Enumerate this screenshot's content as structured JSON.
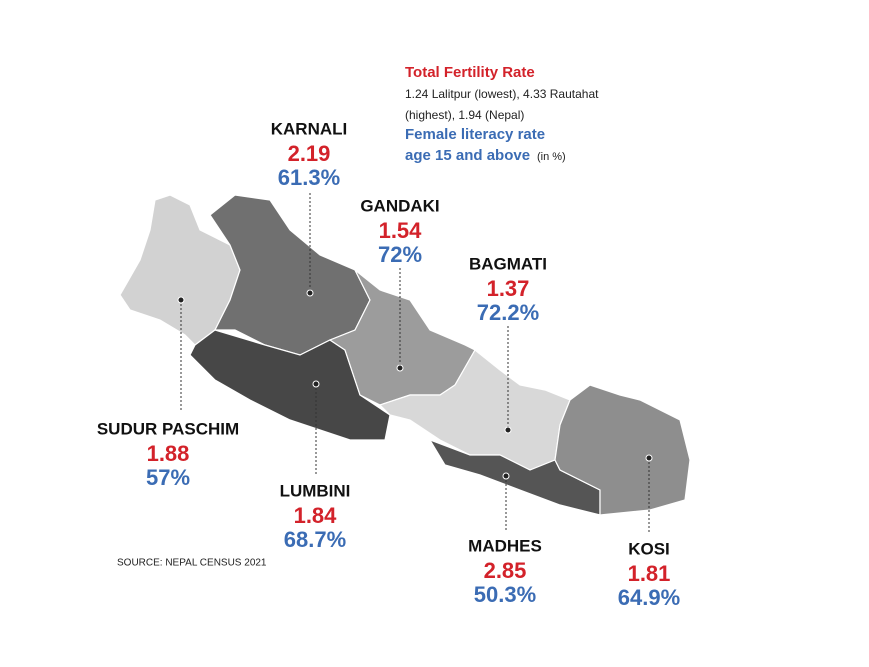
{
  "legend": {
    "tfr_title": "Total Fertility Rate",
    "tfr_note_1": "1.24 Lalitpur (lowest), 4.33 Rautahat",
    "tfr_note_2": "(highest), 1.94 (Nepal)",
    "literacy_title_1": "Female literacy rate",
    "literacy_title_2": "age 15 and above",
    "literacy_unit": "(in %)"
  },
  "provinces": [
    {
      "name": "KARNALI",
      "tfr": "2.19",
      "literacy": "61.3%"
    },
    {
      "name": "GANDAKI",
      "tfr": "1.54",
      "literacy": "72%"
    },
    {
      "name": "BAGMATI",
      "tfr": "1.37",
      "literacy": "72.2%"
    },
    {
      "name": "SUDUR PASCHIM",
      "tfr": "1.88",
      "literacy": "57%"
    },
    {
      "name": "LUMBINI",
      "tfr": "1.84",
      "literacy": "68.7%"
    },
    {
      "name": "MADHES",
      "tfr": "2.85",
      "literacy": "50.3%"
    },
    {
      "name": "KOSI",
      "tfr": "1.81",
      "literacy": "64.9%"
    }
  ],
  "source": "SOURCE: NEPAL CENSUS 2021"
}
